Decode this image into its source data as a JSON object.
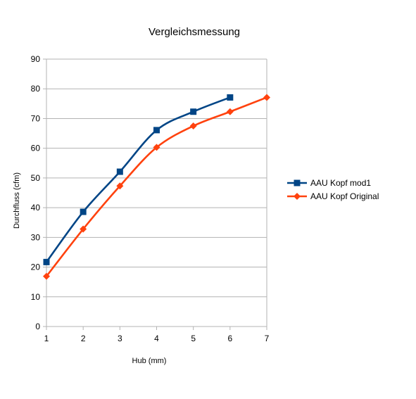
{
  "chart_data": {
    "type": "line",
    "title": "Vergleichsmessung",
    "xlabel": "Hub (mm)",
    "ylabel": "Durchfluss (cfm)",
    "xlim": [
      1,
      7
    ],
    "ylim": [
      0,
      90
    ],
    "xticks": [
      1,
      2,
      3,
      4,
      5,
      6,
      7
    ],
    "yticks": [
      0,
      10,
      20,
      30,
      40,
      50,
      60,
      70,
      80,
      90
    ],
    "grid": true,
    "legend_position": "right",
    "series": [
      {
        "name": "AAU Kopf mod1",
        "color": "#004586",
        "marker": "square",
        "x": [
          1,
          2,
          3,
          4,
          5,
          6
        ],
        "values": [
          21.7,
          38.6,
          52.1,
          66.1,
          72.3,
          77.1
        ]
      },
      {
        "name": "AAU Kopf Original",
        "color": "#ff420e",
        "marker": "diamond",
        "x": [
          1,
          2,
          3,
          4,
          5,
          6,
          7
        ],
        "values": [
          16.9,
          32.8,
          47.3,
          60.3,
          67.5,
          72.3,
          77.1
        ]
      }
    ]
  }
}
